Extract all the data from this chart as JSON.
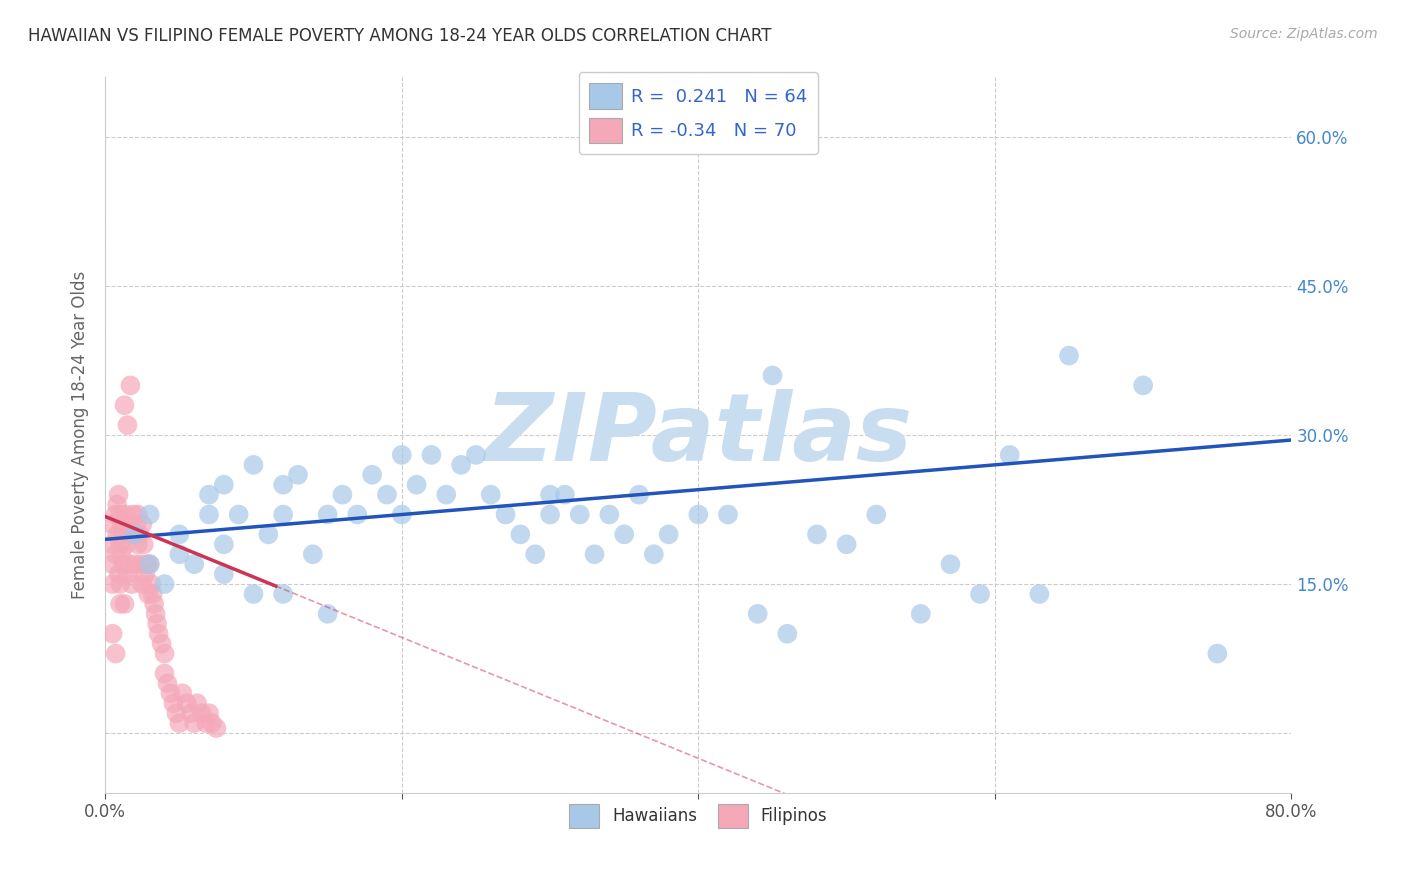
{
  "title": "HAWAIIAN VS FILIPINO FEMALE POVERTY AMONG 18-24 YEAR OLDS CORRELATION CHART",
  "source": "Source: ZipAtlas.com",
  "ylabel": "Female Poverty Among 18-24 Year Olds",
  "xlim": [
    0.0,
    0.8
  ],
  "ylim": [
    -0.06,
    0.66
  ],
  "ytick_positions": [
    0.0,
    0.15,
    0.3,
    0.45,
    0.6
  ],
  "ytick_labels": [
    "",
    "15.0%",
    "30.0%",
    "45.0%",
    "60.0%"
  ],
  "hawaiian_R": 0.241,
  "hawaiian_N": 64,
  "filipino_R": -0.34,
  "filipino_N": 70,
  "hawaiian_color": "#a8c8e8",
  "filipino_color": "#f4a8b8",
  "hawaiian_line_color": "#2255bb",
  "filipino_line_color": "#cc3355",
  "watermark": "ZIPatlas",
  "watermark_color": "#c8ddf0",
  "background_color": "#ffffff",
  "grid_color": "#cccccc",
  "hawaiians_x": [
    0.02,
    0.03,
    0.03,
    0.04,
    0.05,
    0.05,
    0.06,
    0.07,
    0.07,
    0.08,
    0.08,
    0.08,
    0.09,
    0.1,
    0.1,
    0.11,
    0.12,
    0.12,
    0.12,
    0.13,
    0.14,
    0.15,
    0.15,
    0.16,
    0.17,
    0.18,
    0.19,
    0.2,
    0.2,
    0.21,
    0.22,
    0.23,
    0.24,
    0.25,
    0.26,
    0.27,
    0.28,
    0.29,
    0.3,
    0.3,
    0.31,
    0.32,
    0.33,
    0.34,
    0.35,
    0.36,
    0.37,
    0.38,
    0.4,
    0.42,
    0.44,
    0.45,
    0.46,
    0.48,
    0.5,
    0.52,
    0.55,
    0.57,
    0.59,
    0.61,
    0.63,
    0.65,
    0.7,
    0.75
  ],
  "hawaiians_y": [
    0.2,
    0.17,
    0.22,
    0.15,
    0.18,
    0.2,
    0.17,
    0.24,
    0.22,
    0.19,
    0.25,
    0.16,
    0.22,
    0.27,
    0.14,
    0.2,
    0.22,
    0.25,
    0.14,
    0.26,
    0.18,
    0.22,
    0.12,
    0.24,
    0.22,
    0.26,
    0.24,
    0.28,
    0.22,
    0.25,
    0.28,
    0.24,
    0.27,
    0.28,
    0.24,
    0.22,
    0.2,
    0.18,
    0.22,
    0.24,
    0.24,
    0.22,
    0.18,
    0.22,
    0.2,
    0.24,
    0.18,
    0.2,
    0.22,
    0.22,
    0.12,
    0.36,
    0.1,
    0.2,
    0.19,
    0.22,
    0.12,
    0.17,
    0.14,
    0.28,
    0.14,
    0.38,
    0.35,
    0.08
  ],
  "filipinos_x": [
    0.005,
    0.005,
    0.005,
    0.005,
    0.005,
    0.007,
    0.007,
    0.007,
    0.008,
    0.008,
    0.009,
    0.009,
    0.01,
    0.01,
    0.01,
    0.01,
    0.011,
    0.011,
    0.012,
    0.012,
    0.013,
    0.013,
    0.014,
    0.014,
    0.015,
    0.015,
    0.016,
    0.016,
    0.017,
    0.018,
    0.018,
    0.019,
    0.02,
    0.02,
    0.021,
    0.022,
    0.022,
    0.023,
    0.024,
    0.025,
    0.025,
    0.026,
    0.027,
    0.028,
    0.029,
    0.03,
    0.031,
    0.032,
    0.033,
    0.034,
    0.035,
    0.036,
    0.038,
    0.04,
    0.04,
    0.042,
    0.044,
    0.046,
    0.048,
    0.05,
    0.052,
    0.055,
    0.058,
    0.06,
    0.062,
    0.065,
    0.068,
    0.07,
    0.072,
    0.075
  ],
  "filipinos_y": [
    0.21,
    0.19,
    0.17,
    0.15,
    0.1,
    0.22,
    0.18,
    0.08,
    0.23,
    0.2,
    0.24,
    0.16,
    0.22,
    0.19,
    0.15,
    0.13,
    0.21,
    0.18,
    0.2,
    0.17,
    0.33,
    0.13,
    0.22,
    0.19,
    0.31,
    0.16,
    0.21,
    0.17,
    0.35,
    0.2,
    0.15,
    0.22,
    0.2,
    0.17,
    0.21,
    0.22,
    0.19,
    0.2,
    0.17,
    0.21,
    0.15,
    0.19,
    0.16,
    0.17,
    0.14,
    0.17,
    0.15,
    0.14,
    0.13,
    0.12,
    0.11,
    0.1,
    0.09,
    0.08,
    0.06,
    0.05,
    0.04,
    0.03,
    0.02,
    0.01,
    0.04,
    0.03,
    0.02,
    0.01,
    0.03,
    0.02,
    0.01,
    0.02,
    0.01,
    0.005
  ],
  "h_line_x0": 0.0,
  "h_line_y0": 0.195,
  "h_line_x1": 0.8,
  "h_line_y1": 0.295,
  "f_line_x0": 0.0,
  "f_line_y0": 0.218,
  "f_line_x1": 0.115,
  "f_line_y1": 0.148
}
